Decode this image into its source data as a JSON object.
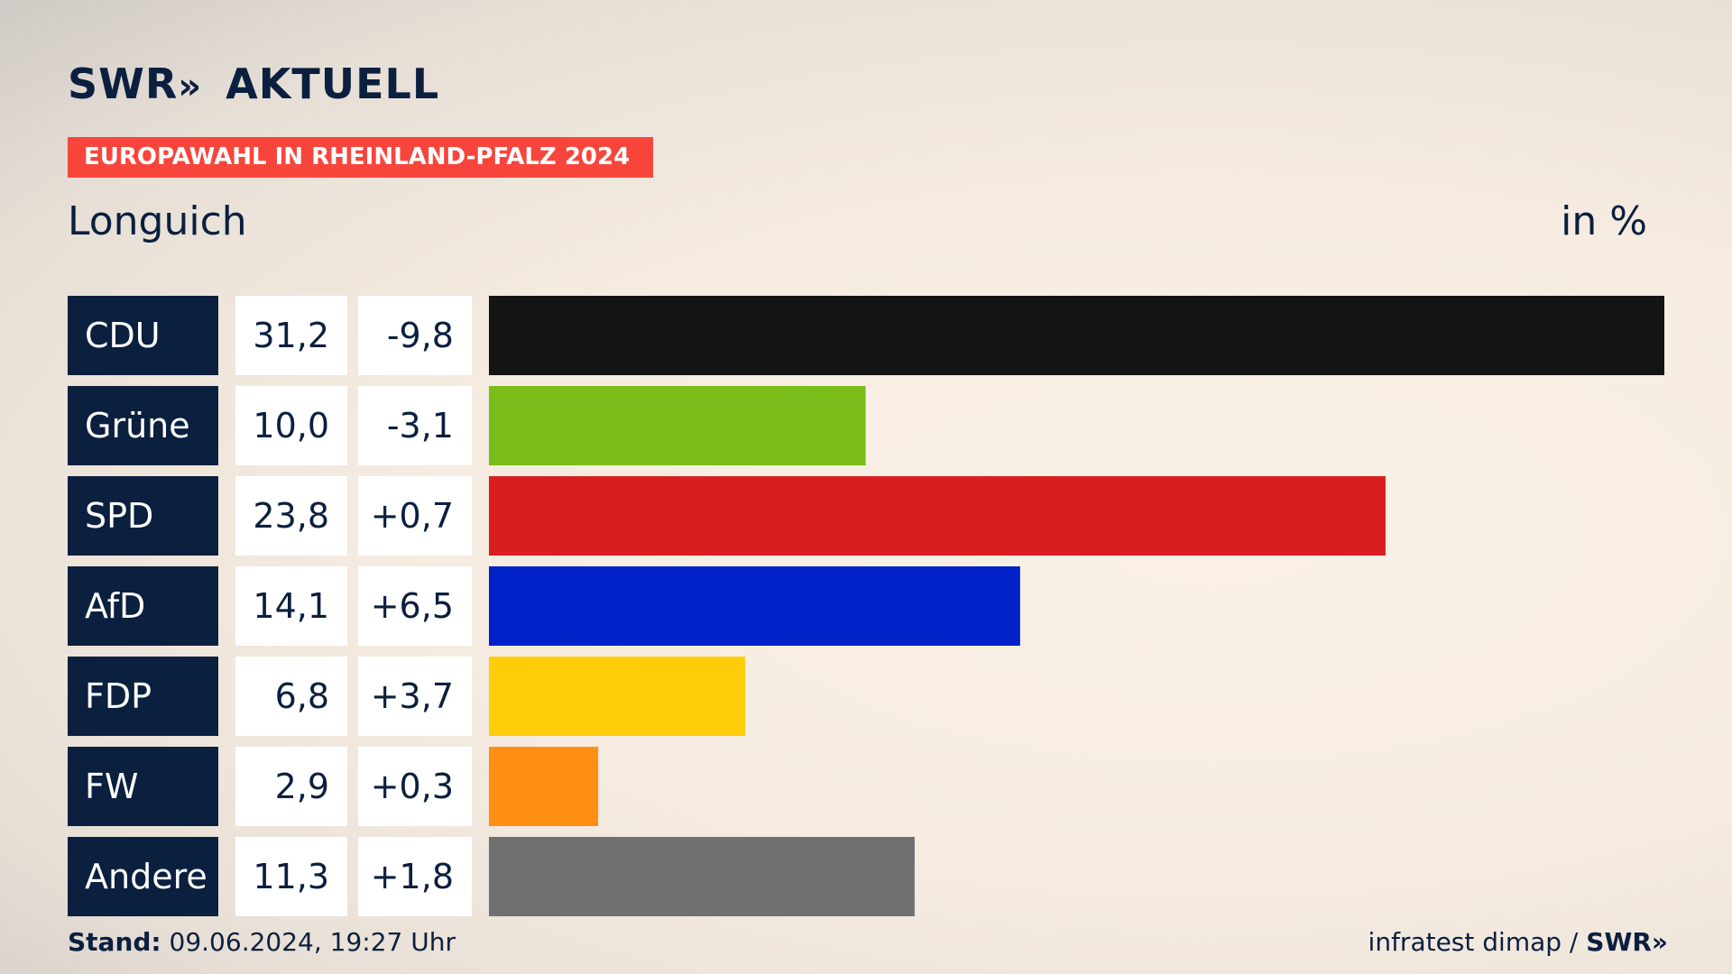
{
  "header": {
    "logo_text": "SWR",
    "logo_arrows": "»",
    "logo_suffix": "AKTUELL",
    "banner": "EUROPAWAHL IN RHEINLAND-PFALZ 2024",
    "place": "Longuich",
    "unit": "in %"
  },
  "footer": {
    "stand_label": "Stand:",
    "stand_value": "09.06.2024, 19:27 Uhr",
    "source": "infratest dimap /",
    "source_logo": "SWR",
    "source_arrows": "»"
  },
  "chart_data": {
    "type": "bar",
    "orientation": "horizontal",
    "xlim": [
      0,
      31.2
    ],
    "categories": [
      "CDU",
      "Grüne",
      "SPD",
      "AfD",
      "FDP",
      "FW",
      "Andere"
    ],
    "values": [
      31.2,
      10.0,
      23.8,
      14.1,
      6.8,
      2.9,
      11.3
    ],
    "value_labels": [
      "31,2",
      "10,0",
      "23,8",
      "14,1",
      "6,8",
      "2,9",
      "11,3"
    ],
    "changes": [
      -9.8,
      -3.1,
      0.7,
      6.5,
      3.7,
      0.3,
      1.8
    ],
    "change_labels": [
      "-9,8",
      "-3,1",
      "+0,7",
      "+6,5",
      "+3,7",
      "+0,3",
      "+1,8"
    ],
    "colors": [
      "#141414",
      "#7abd1b",
      "#d81e1e",
      "#0021c8",
      "#ffcc09",
      "#ff8f14",
      "#6f7072"
    ]
  }
}
